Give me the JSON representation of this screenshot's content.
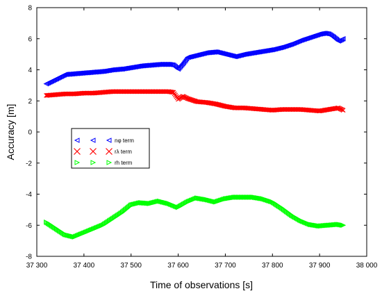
{
  "chart_data": {
    "type": "scatter",
    "title": "",
    "xlabel": "Time of observations [s]",
    "ylabel": "Accuracy [m]",
    "xlim": [
      37300,
      38000
    ],
    "ylim": [
      -8,
      8
    ],
    "x_ticks": [
      37300,
      37400,
      37500,
      37600,
      37700,
      37800,
      37900,
      38000
    ],
    "x_tick_labels": [
      "37 300",
      "37 400",
      "37 500",
      "37 600",
      "37 700",
      "37 800",
      "37 900",
      "38 000"
    ],
    "y_ticks": [
      -8,
      -6,
      -4,
      -2,
      0,
      2,
      4,
      6,
      8
    ],
    "y_tick_labels": [
      "-8",
      "-6",
      "-4",
      "-2",
      "0",
      "2",
      "4",
      "6",
      "8"
    ],
    "grid": false,
    "legend_position": "center-left",
    "series": [
      {
        "name": "nφ term",
        "color": "#0000ff",
        "marker": "triangle-left",
        "x": [
          37320,
          37340,
          37360,
          37380,
          37400,
          37420,
          37440,
          37460,
          37480,
          37500,
          37520,
          37540,
          37560,
          37580,
          37590,
          37600,
          37610,
          37620,
          37640,
          37660,
          37680,
          37700,
          37720,
          37740,
          37760,
          37780,
          37800,
          37820,
          37840,
          37860,
          37880,
          37900,
          37910,
          37920,
          37930,
          37940,
          37950
        ],
        "y": [
          3.1,
          3.4,
          3.7,
          3.75,
          3.8,
          3.85,
          3.9,
          4.0,
          4.05,
          4.15,
          4.25,
          4.3,
          4.35,
          4.35,
          4.3,
          4.05,
          4.4,
          4.8,
          4.95,
          5.1,
          5.15,
          5.0,
          4.85,
          5.0,
          5.1,
          5.2,
          5.3,
          5.45,
          5.65,
          5.9,
          6.1,
          6.3,
          6.35,
          6.3,
          6.1,
          5.85,
          6.0
        ]
      },
      {
        "name": "rλ term",
        "color": "#ff0000",
        "marker": "x",
        "x": [
          37320,
          37340,
          37360,
          37380,
          37400,
          37420,
          37440,
          37460,
          37480,
          37500,
          37520,
          37540,
          37560,
          37580,
          37590,
          37600,
          37610,
          37620,
          37640,
          37660,
          37680,
          37700,
          37720,
          37740,
          37760,
          37780,
          37800,
          37820,
          37840,
          37860,
          37880,
          37900,
          37920,
          37940,
          37950
        ],
        "y": [
          2.35,
          2.4,
          2.45,
          2.45,
          2.5,
          2.5,
          2.55,
          2.6,
          2.6,
          2.6,
          2.6,
          2.6,
          2.6,
          2.6,
          2.55,
          2.1,
          2.3,
          2.15,
          1.95,
          1.9,
          1.8,
          1.65,
          1.55,
          1.55,
          1.5,
          1.45,
          1.4,
          1.45,
          1.45,
          1.45,
          1.4,
          1.35,
          1.45,
          1.55,
          1.4
        ]
      },
      {
        "name": "rh term",
        "color": "#00ff00",
        "marker": "triangle-right",
        "x": [
          37320,
          37340,
          37360,
          37380,
          37400,
          37420,
          37440,
          37460,
          37480,
          37500,
          37520,
          37540,
          37560,
          37580,
          37600,
          37620,
          37640,
          37660,
          37680,
          37700,
          37720,
          37740,
          37760,
          37780,
          37800,
          37820,
          37840,
          37860,
          37880,
          37900,
          37920,
          37940,
          37950
        ],
        "y": [
          -5.8,
          -6.2,
          -6.6,
          -6.75,
          -6.5,
          -6.25,
          -6.0,
          -5.6,
          -5.2,
          -4.7,
          -4.55,
          -4.6,
          -4.45,
          -4.6,
          -4.85,
          -4.5,
          -4.25,
          -4.35,
          -4.5,
          -4.3,
          -4.2,
          -4.2,
          -4.2,
          -4.3,
          -4.5,
          -4.9,
          -5.35,
          -5.7,
          -5.95,
          -6.05,
          -6.0,
          -5.95,
          -6.0
        ]
      }
    ]
  }
}
